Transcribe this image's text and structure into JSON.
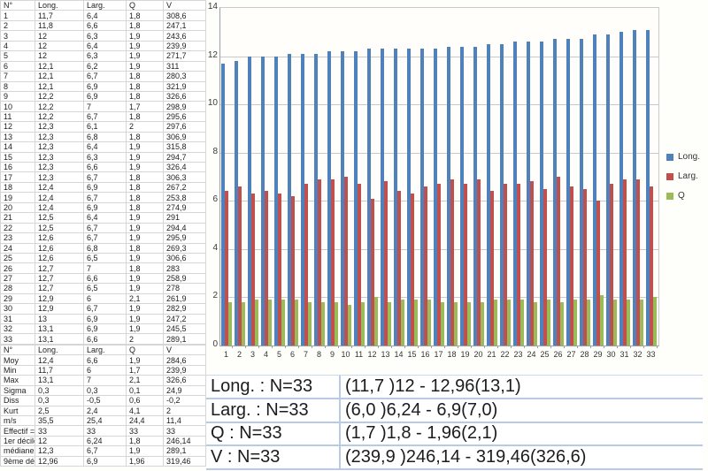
{
  "table": {
    "headers": [
      "N°",
      "Long.",
      "Larg.",
      "Q",
      "V"
    ],
    "rows": [
      [
        "1",
        "11,7",
        "6,4",
        "1,8",
        "308,6"
      ],
      [
        "2",
        "11,8",
        "6,6",
        "1,8",
        "247,1"
      ],
      [
        "3",
        "12",
        "6,3",
        "1,9",
        "243,6"
      ],
      [
        "4",
        "12",
        "6,4",
        "1,9",
        "239,9"
      ],
      [
        "5",
        "12",
        "6,3",
        "1,9",
        "271,7"
      ],
      [
        "6",
        "12,1",
        "6,2",
        "1,9",
        "311"
      ],
      [
        "7",
        "12,1",
        "6,7",
        "1,8",
        "280,3"
      ],
      [
        "8",
        "12,1",
        "6,9",
        "1,8",
        "321,9"
      ],
      [
        "9",
        "12,2",
        "6,9",
        "1,8",
        "326,6"
      ],
      [
        "10",
        "12,2",
        "7",
        "1,7",
        "298,9"
      ],
      [
        "11",
        "12,2",
        "6,7",
        "1,8",
        "295,6"
      ],
      [
        "12",
        "12,3",
        "6,1",
        "2",
        "297,6"
      ],
      [
        "13",
        "12,3",
        "6,8",
        "1,8",
        "306,9"
      ],
      [
        "14",
        "12,3",
        "6,4",
        "1,9",
        "315,8"
      ],
      [
        "15",
        "12,3",
        "6,3",
        "1,9",
        "294,7"
      ],
      [
        "16",
        "12,3",
        "6,6",
        "1,9",
        "326,4"
      ],
      [
        "17",
        "12,3",
        "6,7",
        "1,8",
        "306,3"
      ],
      [
        "18",
        "12,4",
        "6,9",
        "1,8",
        "267,2"
      ],
      [
        "19",
        "12,4",
        "6,7",
        "1,8",
        "253,8"
      ],
      [
        "20",
        "12,4",
        "6,9",
        "1,8",
        "274,9"
      ],
      [
        "21",
        "12,5",
        "6,4",
        "1,9",
        "291"
      ],
      [
        "22",
        "12,5",
        "6,7",
        "1,9",
        "294,4"
      ],
      [
        "23",
        "12,6",
        "6,7",
        "1,9",
        "295,9"
      ],
      [
        "24",
        "12,6",
        "6,8",
        "1,8",
        "269,3"
      ],
      [
        "25",
        "12,6",
        "6,5",
        "1,9",
        "306,6"
      ],
      [
        "26",
        "12,7",
        "7",
        "1,8",
        "283"
      ],
      [
        "27",
        "12,7",
        "6,6",
        "1,9",
        "258,9"
      ],
      [
        "28",
        "12,7",
        "6,5",
        "1,9",
        "278"
      ],
      [
        "29",
        "12,9",
        "6",
        "2,1",
        "261,9"
      ],
      [
        "30",
        "12,9",
        "6,7",
        "1,9",
        "282,9"
      ],
      [
        "31",
        "13",
        "6,9",
        "1,9",
        "247,2"
      ],
      [
        "32",
        "13,1",
        "6,9",
        "1,9",
        "245,5"
      ],
      [
        "33",
        "13,1",
        "6,6",
        "2",
        "289,1"
      ]
    ]
  },
  "stats": {
    "headers": [
      "N°",
      "Long.",
      "Larg.",
      "Q",
      "V"
    ],
    "rows": [
      [
        "Moy",
        "12,4",
        "6,6",
        "1,9",
        "284,6"
      ],
      [
        "Min",
        "11,7",
        "6",
        "1,7",
        "239,9"
      ],
      [
        "Max",
        "13,1",
        "7",
        "2,1",
        "326,6"
      ],
      [
        "Sigma",
        "0,3",
        "0,3",
        "0,1",
        "24,9"
      ],
      [
        "Diss",
        "0,3",
        "-0,5",
        "0,6",
        "-0,2"
      ],
      [
        "Kurt",
        "2,5",
        "2,4",
        "4,1",
        "2"
      ],
      [
        "m/s",
        "35,5",
        "25,4",
        "24,4",
        "11,4"
      ],
      [
        "Effectif =",
        "33",
        "33",
        "33",
        "33"
      ],
      [
        "1er décile",
        "12",
        "6,24",
        "1,8",
        "246,14"
      ],
      [
        "médiane",
        "12,3",
        "6,7",
        "1,9",
        "289,1"
      ],
      [
        "9ème déci",
        "12,96",
        "6,9",
        "1,96",
        "319,46"
      ]
    ]
  },
  "chart_data": {
    "type": "bar",
    "title": "",
    "xlabel": "",
    "ylabel": "",
    "categories": [
      1,
      2,
      3,
      4,
      5,
      6,
      7,
      8,
      9,
      10,
      11,
      12,
      13,
      14,
      15,
      16,
      17,
      18,
      19,
      20,
      21,
      22,
      23,
      24,
      25,
      26,
      27,
      28,
      29,
      30,
      31,
      32,
      33
    ],
    "series": [
      {
        "name": "Long.",
        "color": "#4F81BD",
        "values": [
          11.7,
          11.8,
          12,
          12,
          12,
          12.1,
          12.1,
          12.1,
          12.2,
          12.2,
          12.2,
          12.3,
          12.3,
          12.3,
          12.3,
          12.3,
          12.3,
          12.4,
          12.4,
          12.4,
          12.5,
          12.5,
          12.6,
          12.6,
          12.6,
          12.7,
          12.7,
          12.7,
          12.9,
          12.9,
          13,
          13.1,
          13.1
        ]
      },
      {
        "name": "Larg.",
        "color": "#C0504D",
        "values": [
          6.4,
          6.6,
          6.3,
          6.4,
          6.3,
          6.2,
          6.7,
          6.9,
          6.9,
          7,
          6.7,
          6.1,
          6.8,
          6.4,
          6.3,
          6.6,
          6.7,
          6.9,
          6.7,
          6.9,
          6.4,
          6.7,
          6.7,
          6.8,
          6.5,
          7,
          6.6,
          6.5,
          6,
          6.7,
          6.9,
          6.9,
          6.6
        ]
      },
      {
        "name": "Q",
        "color": "#9BBB59",
        "values": [
          1.8,
          1.8,
          1.9,
          1.9,
          1.9,
          1.9,
          1.8,
          1.8,
          1.8,
          1.7,
          1.8,
          2,
          1.8,
          1.9,
          1.9,
          1.9,
          1.8,
          1.8,
          1.8,
          1.8,
          1.9,
          1.9,
          1.9,
          1.8,
          1.9,
          1.8,
          1.9,
          1.9,
          2.1,
          1.9,
          1.9,
          1.9,
          2
        ]
      }
    ],
    "ylim": [
      0,
      14
    ],
    "yticks": [
      0,
      2,
      4,
      6,
      8,
      10,
      12,
      14
    ],
    "grid": true,
    "legend_position": "right"
  },
  "summary": {
    "rows": [
      {
        "label": "Long. : N=33",
        "value": "(11,7 )12 - 12,96(13,1)"
      },
      {
        "label": "Larg. : N=33",
        "value": "(6,0 )6,24 - 6,9(7,0)"
      },
      {
        "label": "Q : N=33",
        "value": "(1,7 )1,8 - 1,96(2,1)"
      },
      {
        "label": "V : N=33",
        "value": "(239,9 )246,14 - 319,46(326,6)"
      }
    ]
  }
}
